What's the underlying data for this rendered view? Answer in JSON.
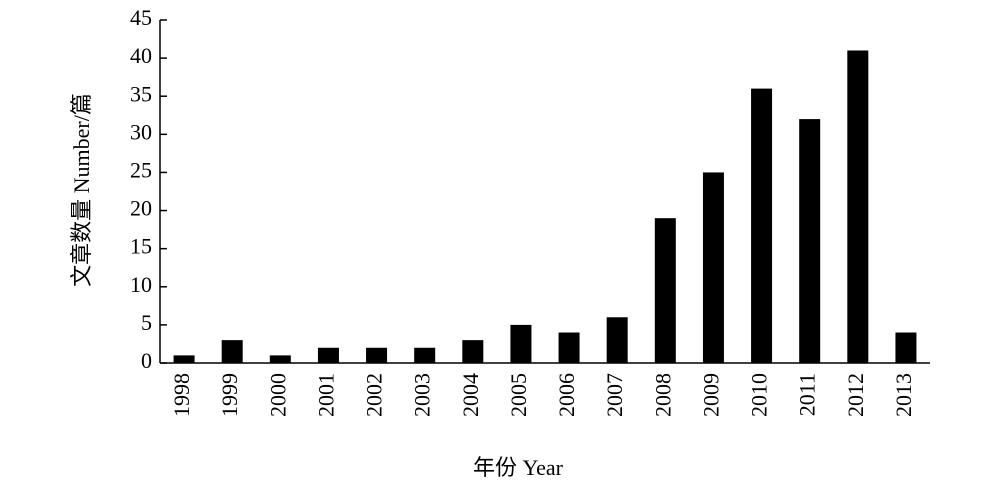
{
  "chart_data": {
    "type": "bar",
    "xlabel": "年份 Year",
    "ylabel": "文章数量 Number/篇",
    "categories": [
      "1998",
      "1999",
      "2000",
      "2001",
      "2002",
      "2003",
      "2004",
      "2005",
      "2006",
      "2007",
      "2008",
      "2009",
      "2010",
      "2011",
      "2012",
      "2013"
    ],
    "values": [
      1,
      3,
      1,
      2,
      2,
      2,
      3,
      5,
      4,
      6,
      19,
      25,
      36,
      32,
      41,
      4
    ],
    "color": "#000000",
    "ylim": [
      0,
      45
    ],
    "yticks": [
      0,
      5,
      10,
      15,
      20,
      25,
      30,
      35,
      40,
      45
    ],
    "grid": false
  }
}
